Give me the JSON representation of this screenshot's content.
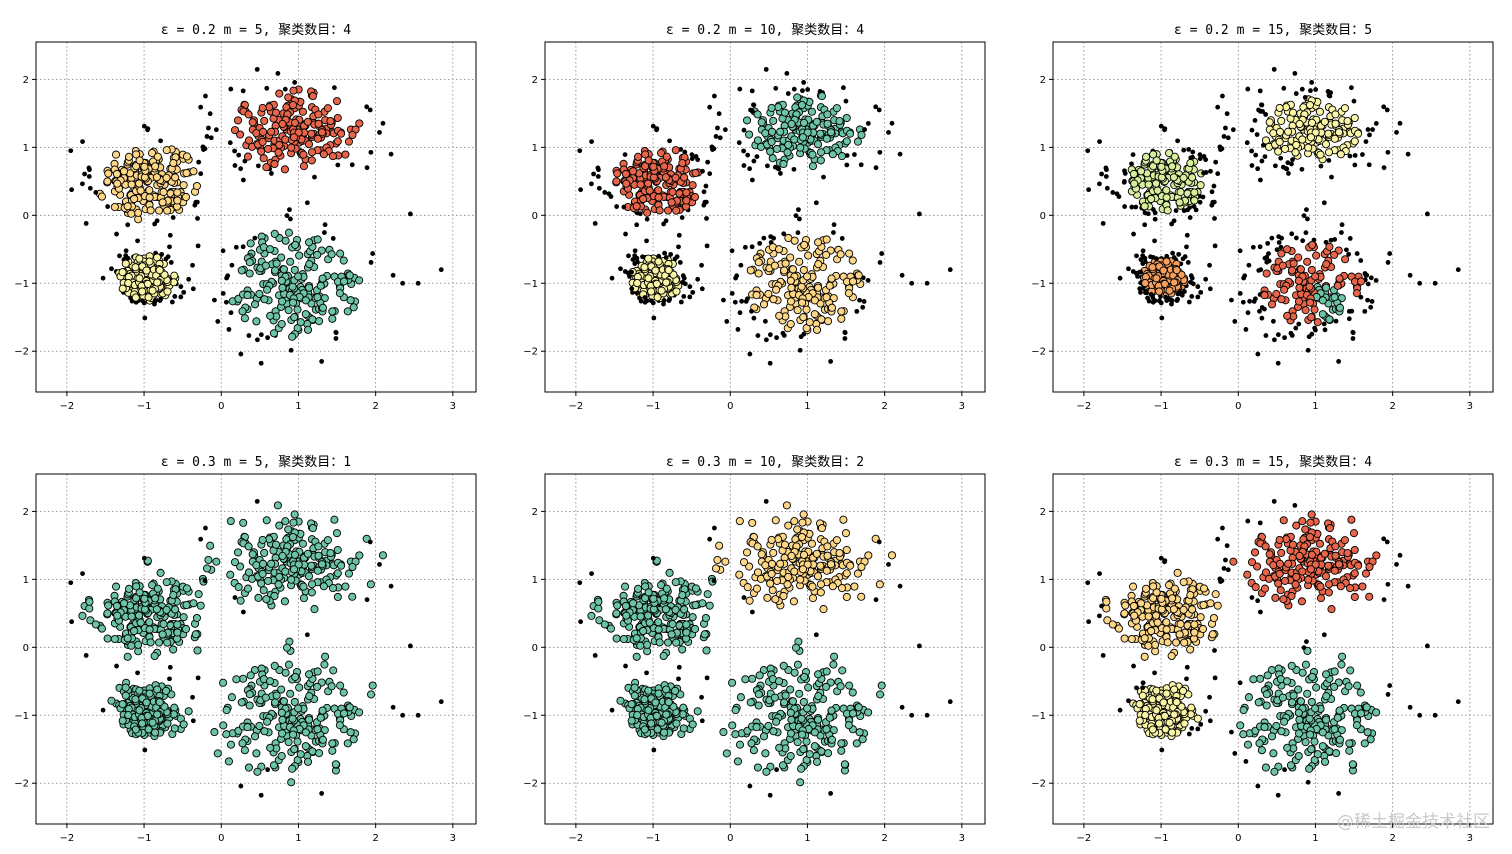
{
  "watermark": "@稀土掘金技术社区",
  "colors": {
    "noise": "#000000",
    "red": "#e8654a",
    "orange": "#f7a05e",
    "cream": "#fdd686",
    "yellow": "#fbf6a6",
    "lightgreen": "#d7ee9c",
    "teal": "#6cc3a5"
  },
  "chart_data": [
    {
      "type": "scatter",
      "title": "ε = 0.2  m = 5, 聚类数目：4",
      "eps": 0.2,
      "m": 5,
      "cluster_count": 4,
      "xlim": [
        -2.4,
        3.3
      ],
      "ylim": [
        -2.6,
        2.55
      ],
      "xticks": [
        -2,
        -1,
        0,
        1,
        2,
        3
      ],
      "yticks": [
        -2,
        -1,
        0,
        1,
        2
      ],
      "grid": true,
      "assignment": {
        "TL": "cream",
        "TR": "red",
        "BL": "yellow",
        "BR": "teal"
      },
      "noise": "many"
    },
    {
      "type": "scatter",
      "title": "ε = 0.2  m = 10, 聚类数目：4",
      "eps": 0.2,
      "m": 10,
      "cluster_count": 4,
      "xlim": [
        -2.4,
        3.3
      ],
      "ylim": [
        -2.6,
        2.55
      ],
      "xticks": [
        -2,
        -1,
        0,
        1,
        2,
        3
      ],
      "yticks": [
        -2,
        -1,
        0,
        1,
        2
      ],
      "grid": true,
      "assignment": {
        "TL": "red",
        "TR": "teal",
        "BL": "yellow",
        "BR": "cream"
      },
      "noise": "more"
    },
    {
      "type": "scatter",
      "title": "ε = 0.2  m = 15, 聚类数目：5",
      "eps": 0.2,
      "m": 15,
      "cluster_count": 5,
      "xlim": [
        -2.4,
        3.3
      ],
      "ylim": [
        -2.6,
        2.55
      ],
      "xticks": [
        -2,
        -1,
        0,
        1,
        2,
        3
      ],
      "yticks": [
        -2,
        -1,
        0,
        1,
        2
      ],
      "grid": true,
      "assignment": {
        "TL": "lightgreen",
        "TR": "yellow",
        "BL": "orange",
        "BR": "red"
      },
      "noise": "most"
    },
    {
      "type": "scatter",
      "title": "ε = 0.3  m = 5, 聚类数目：1",
      "eps": 0.3,
      "m": 5,
      "cluster_count": 1,
      "xlim": [
        -2.4,
        3.3
      ],
      "ylim": [
        -2.6,
        2.55
      ],
      "xticks": [
        -2,
        -1,
        0,
        1,
        2,
        3
      ],
      "yticks": [
        -2,
        -1,
        0,
        1,
        2
      ],
      "grid": true,
      "assignment": {
        "TL": "teal",
        "TR": "teal",
        "BL": "teal",
        "BR": "teal"
      },
      "noise": "few"
    },
    {
      "type": "scatter",
      "title": "ε = 0.3  m = 10, 聚类数目：2",
      "eps": 0.3,
      "m": 10,
      "cluster_count": 2,
      "xlim": [
        -2.4,
        3.3
      ],
      "ylim": [
        -2.6,
        2.55
      ],
      "xticks": [
        -2,
        -1,
        0,
        1,
        2,
        3
      ],
      "yticks": [
        -2,
        -1,
        0,
        1,
        2
      ],
      "grid": true,
      "assignment": {
        "TL": "teal",
        "TR": "cream",
        "BL": "teal",
        "BR": "teal"
      },
      "noise": "few"
    },
    {
      "type": "scatter",
      "title": "ε = 0.3  m = 15, 聚类数目：4",
      "eps": 0.3,
      "m": 15,
      "cluster_count": 4,
      "xlim": [
        -2.4,
        3.3
      ],
      "ylim": [
        -2.6,
        2.55
      ],
      "xticks": [
        -2,
        -1,
        0,
        1,
        2,
        3
      ],
      "yticks": [
        -2,
        -1,
        0,
        1,
        2
      ],
      "grid": true,
      "assignment": {
        "TL": "cream",
        "TR": "red",
        "BL": "yellow",
        "BR": "teal"
      },
      "noise": "some"
    }
  ],
  "blobs": {
    "TL": {
      "cx": -0.95,
      "cy": 0.5,
      "sx": 0.35,
      "sy": 0.3,
      "n": 230
    },
    "TR": {
      "cx": 0.95,
      "cy": 1.25,
      "sx": 0.45,
      "sy": 0.32,
      "n": 230
    },
    "BL": {
      "cx": -0.95,
      "cy": -0.92,
      "sx": 0.2,
      "sy": 0.18,
      "n": 230
    },
    "BR": {
      "cx": 0.95,
      "cy": -1.0,
      "sx": 0.45,
      "sy": 0.42,
      "n": 230
    }
  }
}
